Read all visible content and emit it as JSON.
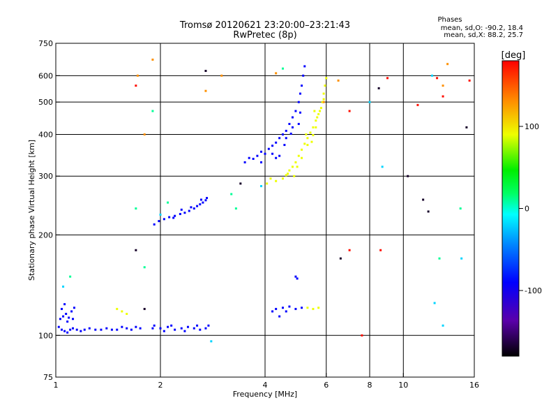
{
  "chart_data": {
    "type": "scatter",
    "title": "Tromsø 20120621 23:20:00–23:21:43",
    "subtitle": "RwPretec (8p)",
    "xlabel": "Frequency [MHz]",
    "ylabel": "Stationary phase Virtual Height [km]",
    "x_scale": "log",
    "y_scale": "log",
    "xlim": [
      1,
      16
    ],
    "ylim": [
      75,
      750
    ],
    "x_ticks": [
      "1",
      "2",
      "4",
      "6",
      "8",
      "10",
      "16"
    ],
    "x_gridlines": [
      2,
      4,
      6,
      8,
      10
    ],
    "y_ticks": [
      "75",
      "100",
      "200",
      "300",
      "400",
      "500",
      "600",
      "750"
    ],
    "y_gridlines": [
      100,
      200,
      300,
      400,
      500,
      600
    ],
    "grid": true,
    "phases_box": {
      "title": "Phases",
      "line_o": "mean, sd,O: -90.2, 18.4",
      "line_x": "mean, sd,X: 88.2, 25.7"
    },
    "colorbar": {
      "label": "[deg]",
      "range": [
        -180,
        180
      ],
      "ticks": [
        "100",
        "0",
        "-100"
      ]
    },
    "series": [
      {
        "phase_deg": -90,
        "points": [
          [
            1.02,
            106
          ],
          [
            1.04,
            104
          ],
          [
            1.06,
            103
          ],
          [
            1.08,
            102
          ],
          [
            1.1,
            104
          ],
          [
            1.12,
            105
          ],
          [
            1.15,
            104
          ],
          [
            1.18,
            103
          ],
          [
            1.21,
            104
          ],
          [
            1.25,
            105
          ],
          [
            1.3,
            104
          ],
          [
            1.35,
            104
          ],
          [
            1.4,
            105
          ],
          [
            1.45,
            104
          ],
          [
            1.5,
            104
          ],
          [
            1.55,
            106
          ],
          [
            1.6,
            105
          ],
          [
            1.65,
            104
          ],
          [
            1.7,
            106
          ],
          [
            1.75,
            105
          ],
          [
            1.03,
            112
          ],
          [
            1.05,
            114
          ],
          [
            1.07,
            116
          ],
          [
            1.09,
            113
          ],
          [
            1.11,
            118
          ],
          [
            1.13,
            121
          ],
          [
            1.04,
            120
          ],
          [
            1.06,
            124
          ],
          [
            1.08,
            110
          ],
          [
            1.12,
            112
          ],
          [
            1.9,
            105
          ],
          [
            2.0,
            105
          ],
          [
            2.1,
            106
          ],
          [
            2.2,
            104
          ],
          [
            2.3,
            105
          ],
          [
            2.4,
            106
          ],
          [
            2.5,
            105
          ],
          [
            2.6,
            104
          ],
          [
            2.7,
            105
          ],
          [
            2.75,
            107
          ],
          [
            1.92,
            107
          ],
          [
            2.05,
            103
          ],
          [
            2.15,
            107
          ],
          [
            2.35,
            103
          ],
          [
            2.55,
            107
          ],
          [
            1.92,
            215
          ],
          [
            1.98,
            220
          ],
          [
            2.05,
            223
          ],
          [
            2.12,
            226
          ],
          [
            2.2,
            228
          ],
          [
            2.28,
            231
          ],
          [
            2.35,
            233
          ],
          [
            2.42,
            236
          ],
          [
            2.5,
            240
          ],
          [
            2.55,
            244
          ],
          [
            2.6,
            247
          ],
          [
            2.65,
            250
          ],
          [
            2.7,
            254
          ],
          [
            2.72,
            258
          ],
          [
            2.3,
            238
          ],
          [
            2.45,
            242
          ],
          [
            2.62,
            255
          ],
          [
            2.18,
            225
          ],
          [
            3.5,
            330
          ],
          [
            3.6,
            340
          ],
          [
            3.7,
            338
          ],
          [
            3.8,
            345
          ],
          [
            3.9,
            355
          ],
          [
            4.0,
            350
          ],
          [
            4.1,
            362
          ],
          [
            4.2,
            370
          ],
          [
            4.3,
            378
          ],
          [
            4.4,
            390
          ],
          [
            4.5,
            400
          ],
          [
            4.6,
            410
          ],
          [
            4.7,
            430
          ],
          [
            4.8,
            450
          ],
          [
            4.9,
            470
          ],
          [
            5.0,
            500
          ],
          [
            5.05,
            530
          ],
          [
            5.1,
            560
          ],
          [
            5.15,
            600
          ],
          [
            5.2,
            640
          ],
          [
            4.2,
            350
          ],
          [
            4.4,
            345
          ],
          [
            4.6,
            390
          ],
          [
            4.8,
            420
          ],
          [
            5.0,
            430
          ],
          [
            3.9,
            330
          ],
          [
            4.3,
            340
          ],
          [
            4.55,
            372
          ],
          [
            4.75,
            402
          ],
          [
            5.05,
            465
          ],
          [
            4.2,
            118
          ],
          [
            4.3,
            120
          ],
          [
            4.5,
            121
          ],
          [
            4.7,
            122
          ],
          [
            4.9,
            120
          ],
          [
            5.1,
            121
          ],
          [
            4.9,
            150
          ],
          [
            4.95,
            148
          ],
          [
            4.4,
            114
          ],
          [
            4.6,
            118
          ]
        ]
      },
      {
        "phase_deg": 90,
        "points": [
          [
            4.3,
            290
          ],
          [
            4.5,
            295
          ],
          [
            4.6,
            302
          ],
          [
            4.7,
            312
          ],
          [
            4.8,
            320
          ],
          [
            4.9,
            330
          ],
          [
            5.0,
            345
          ],
          [
            5.1,
            360
          ],
          [
            5.2,
            375
          ],
          [
            5.3,
            390
          ],
          [
            5.4,
            405
          ],
          [
            5.5,
            420
          ],
          [
            5.6,
            440
          ],
          [
            5.7,
            460
          ],
          [
            5.8,
            480
          ],
          [
            5.85,
            500
          ],
          [
            5.9,
            530
          ],
          [
            5.95,
            560
          ],
          [
            6.0,
            590
          ],
          [
            5.75,
            470
          ],
          [
            5.6,
            420
          ],
          [
            5.5,
            398
          ],
          [
            5.3,
            372
          ],
          [
            5.1,
            340
          ],
          [
            4.95,
            320
          ],
          [
            4.85,
            300
          ],
          [
            4.65,
            305
          ],
          [
            5.45,
            380
          ],
          [
            5.65,
            450
          ],
          [
            5.9,
            510
          ],
          [
            1.5,
            120
          ],
          [
            1.55,
            118
          ],
          [
            1.6,
            116
          ],
          [
            5.3,
            121
          ],
          [
            5.5,
            120
          ],
          [
            5.7,
            121
          ],
          [
            4.05,
            285
          ],
          [
            4.15,
            295
          ],
          [
            5.25,
            400
          ],
          [
            5.55,
            470
          ]
        ]
      },
      {
        "phase_deg": 130,
        "points": [
          [
            1.72,
            600
          ],
          [
            1.8,
            400
          ],
          [
            2.7,
            540
          ],
          [
            3.0,
            600
          ],
          [
            5.9,
            500
          ],
          [
            1.9,
            670
          ],
          [
            13,
            560
          ],
          [
            13.4,
            650
          ],
          [
            6.5,
            580
          ],
          [
            4.3,
            610
          ]
        ]
      },
      {
        "phase_deg": 175,
        "points": [
          [
            7.0,
            180
          ],
          [
            8.6,
            180
          ],
          [
            9.0,
            590
          ],
          [
            7.0,
            470
          ],
          [
            11,
            490
          ],
          [
            12.5,
            590
          ],
          [
            15.5,
            580
          ],
          [
            1.7,
            560
          ],
          [
            13,
            520
          ],
          [
            7.6,
            100
          ]
        ]
      },
      {
        "phase_deg": 10,
        "points": [
          [
            1.7,
            240
          ],
          [
            1.9,
            470
          ],
          [
            2.1,
            250
          ],
          [
            3.3,
            240
          ],
          [
            1.1,
            150
          ],
          [
            12.7,
            170
          ],
          [
            14.6,
            240
          ],
          [
            1.8,
            160
          ],
          [
            3.2,
            265
          ],
          [
            4.5,
            630
          ]
        ]
      },
      {
        "phase_deg": -20,
        "points": [
          [
            12.3,
            125
          ],
          [
            14.7,
            170
          ],
          [
            8.0,
            500
          ],
          [
            1.05,
            140
          ],
          [
            2.0,
            230
          ],
          [
            2.8,
            96
          ],
          [
            12.1,
            600
          ],
          [
            3.9,
            280
          ],
          [
            8.7,
            320
          ],
          [
            13.0,
            107
          ]
        ]
      },
      {
        "phase_deg": -170,
        "points": [
          [
            10.3,
            300
          ],
          [
            15.2,
            420
          ],
          [
            11.4,
            255
          ],
          [
            11.8,
            235
          ],
          [
            1.7,
            180
          ],
          [
            1.8,
            120
          ],
          [
            2.7,
            620
          ],
          [
            3.4,
            285
          ],
          [
            8.5,
            550
          ],
          [
            6.6,
            170
          ]
        ]
      }
    ]
  }
}
